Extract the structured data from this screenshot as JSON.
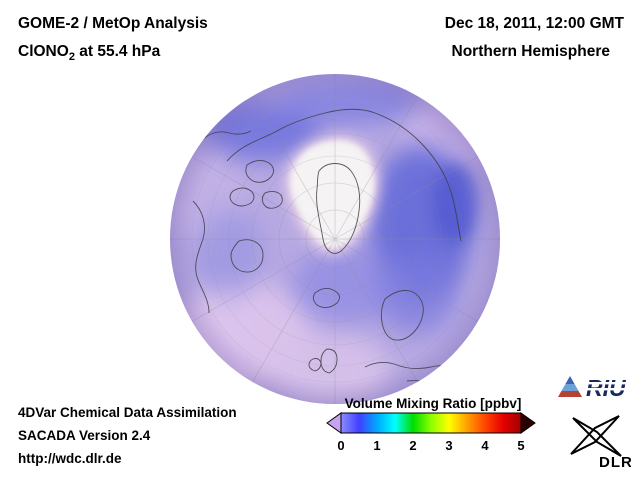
{
  "header": {
    "title": "GOME-2 / MetOp Analysis",
    "species_prefix": "ClONO",
    "species_sub": "2",
    "species_suffix": " at 55.4 hPa",
    "datetime": "Dec 18, 2011, 12:00 GMT",
    "hemisphere": "Northern Hemisphere"
  },
  "footer": {
    "line1": "4DVar Chemical Data Assimilation",
    "line2": "SACADA Version 2.4",
    "line3": "http://wdc.dlr.de"
  },
  "colorbar": {
    "title": "Volume Mixing Ratio [ppbv]",
    "ticks": [
      "0",
      "1",
      "2",
      "3",
      "4",
      "5"
    ],
    "gradient": [
      "#8c8cff",
      "#4040ff",
      "#00a8ff",
      "#00ffff",
      "#00dc00",
      "#8cff00",
      "#ffff00",
      "#ffa000",
      "#ff4600",
      "#e60000",
      "#a00000"
    ],
    "under_color": "#c8a2f0",
    "over_color": "#2b0000"
  },
  "logos": {
    "riu_text": "RIU",
    "dlr_text": "DLR"
  },
  "chart_data": {
    "type": "heatmap",
    "title": "GOME-2 / MetOp Analysis ClONO2 at 55.4 hPa",
    "datetime": "Dec 18, 2011, 12:00 GMT",
    "region": "Northern Hemisphere",
    "projection": "orthographic, North Pole centered",
    "colorbar": {
      "label": "Volume Mixing Ratio [ppbv]",
      "range": [
        0,
        5
      ],
      "ticks": [
        0,
        1,
        2,
        3,
        4,
        5
      ],
      "extend": "both"
    },
    "field_summary": [
      {
        "area": "Arctic polar cap (~70-90N)",
        "value_ppbv": null,
        "note": "white / no retrieval (polar night)"
      },
      {
        "area": "edge ring around polar cap",
        "value_ppbv": 0.2,
        "note": "pink-white fringe"
      },
      {
        "area": "North Atlantic / Norwegian Sea / Siberian sector",
        "value_ppbv": 1.0,
        "note": "blue maxima"
      },
      {
        "area": "mid-latitude background",
        "value_ppbv": 0.5,
        "note": "lavender"
      },
      {
        "area": "low-latitude rim (Pacific / N. America south, bottom-left)",
        "value_ppbv": 0.3,
        "note": "pink"
      }
    ],
    "source": "4DVar Chemical Data Assimilation, SACADA Version 2.4"
  }
}
